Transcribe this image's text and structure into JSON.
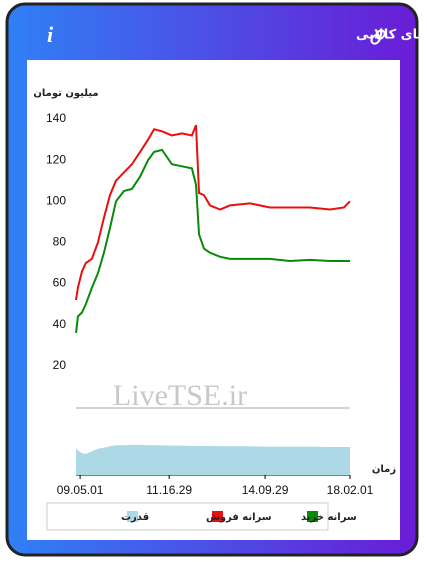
{
  "header": {
    "title": "سرانه ی خرید و فروش حقیقی در صندوق های کالایی",
    "info": "i"
  },
  "chart_data": {
    "type": "line",
    "y_label": "میلیون تومان",
    "x_label": "زمان",
    "watermark": "LiveTSE.ir",
    "x": [
      0,
      0.7,
      2.2,
      3.6,
      5.8,
      8,
      10.2,
      12.4,
      14.6,
      17.5,
      20.4,
      23.4,
      26.3,
      28.5,
      31.4,
      35,
      38.7,
      42.3,
      43.8,
      44.9,
      46.7,
      48.9,
      52.6,
      56.2,
      63.5,
      70.8,
      78.1,
      85.4,
      92.7,
      97.8,
      100
    ],
    "xlim": [
      0,
      100
    ],
    "xticks": [
      {
        "value": 1.5,
        "label": "09.05.01"
      },
      {
        "value": 34,
        "label": "11.16.29"
      },
      {
        "value": 69,
        "label": "14.09.29"
      },
      {
        "value": 100,
        "label": "18.02.01"
      }
    ],
    "ylim": [
      0,
      140
    ],
    "yticks": [
      20,
      40,
      60,
      80,
      100,
      120,
      140
    ],
    "y2lim": [
      0,
      1
    ],
    "series": [
      {
        "name": "سرانه خرید",
        "color": "#0a8a0a",
        "values": [
          36,
          44,
          46,
          50,
          58,
          65,
          75,
          87,
          100,
          105,
          106,
          112,
          120,
          124,
          125,
          118,
          117,
          116,
          108,
          84,
          77,
          75,
          73,
          72,
          72,
          72,
          71,
          71.5,
          71,
          71,
          71
        ]
      },
      {
        "name": "سرانه فروش",
        "color": "#e8100e",
        "values": [
          52,
          58,
          66,
          70,
          72,
          80,
          92,
          103,
          110,
          114,
          118,
          124,
          130,
          135,
          134,
          132,
          133,
          132,
          137,
          104,
          103,
          98,
          96,
          98,
          99,
          97,
          97,
          97,
          96,
          97,
          100
        ]
      },
      {
        "name": "قدرت",
        "color": "#add8e6",
        "axis": "y2",
        "values": [
          0.77,
          0.7,
          0.62,
          0.6,
          0.68,
          0.75,
          0.78,
          0.82,
          0.85,
          0.85,
          0.86,
          0.86,
          0.85,
          0.85,
          0.85,
          0.84,
          0.84,
          0.83,
          0.83,
          0.83,
          0.83,
          0.83,
          0.82,
          0.82,
          0.82,
          0.81,
          0.81,
          0.81,
          0.8,
          0.8,
          0.8
        ]
      }
    ]
  }
}
